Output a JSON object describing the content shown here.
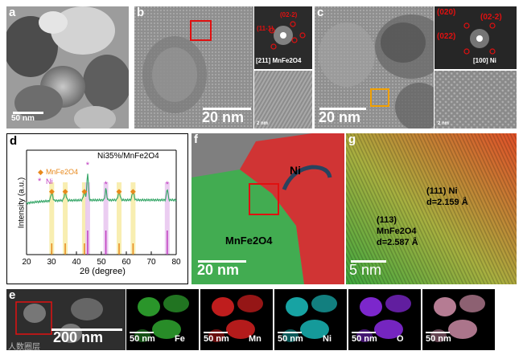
{
  "panels": {
    "a": {
      "label": "a",
      "scale": "50 nm"
    },
    "b": {
      "label": "b",
      "scale": "20 nm",
      "fft_caption": "[211] MnFe2O4",
      "fft_spots": [
        "(02-2)",
        "(11-1)"
      ],
      "hr_scale": "2 nm"
    },
    "c": {
      "label": "c",
      "scale": "20 nm",
      "fft_caption": "[100] Ni",
      "fft_spots": [
        "(020)",
        "(02-2)",
        "(022)"
      ],
      "hr_scale": "2 nm"
    },
    "f": {
      "label": "f",
      "scale": "20 nm",
      "ni": "Ni",
      "mnfe": "MnFe2O4"
    },
    "g": {
      "label": "g",
      "scale": "5 nm",
      "ni_plane": "(111) Ni",
      "ni_d": "d=2.159 Å",
      "mn_plane": "(113)",
      "mn_name": "MnFe2O4",
      "mn_d": "d=2.587 Å"
    },
    "e": {
      "label": "e",
      "scale": "200 nm",
      "maps": [
        {
          "scale": "50 nm",
          "element": "Fe",
          "color": "#2fa52f"
        },
        {
          "scale": "50 nm",
          "element": "Mn",
          "color": "#d42020"
        },
        {
          "scale": "50 nm",
          "element": "Ni",
          "color": "#19b5b5"
        },
        {
          "scale": "50 nm",
          "element": "O",
          "color": "#8a2be2"
        },
        {
          "scale": "50 nm",
          "element": "",
          "color": "#c98aa3"
        }
      ]
    },
    "watermark": "人数圈层"
  },
  "chart_data": {
    "type": "line",
    "panel": "d",
    "title": "Ni35%/MnFe2O4",
    "xlabel": "2θ (degree)",
    "ylabel": "Intensity (a.u.)",
    "xlim": [
      20,
      80
    ],
    "x_ticks": [
      20,
      30,
      40,
      50,
      60,
      70,
      80
    ],
    "legend": [
      {
        "marker": "◆",
        "name": "MnFe2O4",
        "color": "#e8891c"
      },
      {
        "marker": "*",
        "name": "Ni",
        "color": "#c03cc0"
      }
    ],
    "curve_color": "#3aa86b",
    "mnfe_peaks": [
      30.1,
      35.5,
      43.2,
      57.1,
      62.7
    ],
    "ni_peaks": [
      44.5,
      51.8,
      76.4
    ],
    "series": [
      {
        "name": "XRD",
        "x": [
          20,
          80
        ]
      }
    ]
  }
}
